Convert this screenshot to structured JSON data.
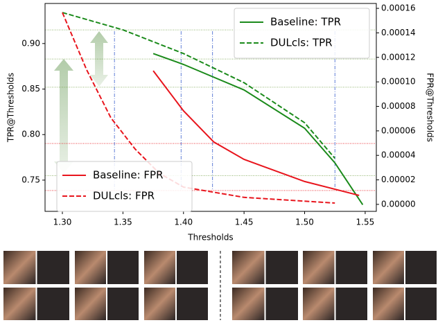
{
  "chart_data": {
    "type": "line",
    "xlabel": "Thresholds",
    "ylabel": "TPR@Thresholds",
    "y2label": "FPR@Thresholds",
    "xlim": [
      1.2857,
      1.5592
    ],
    "ylim": [
      0.7157,
      0.944
    ],
    "y2lim": [
      -5.7e-06,
      0.000164
    ],
    "xticks": [
      {
        "value": 1.3,
        "label": "1.30"
      },
      1.35,
      {
        "value": 1.4,
        "label": "1.40"
      },
      1.45,
      {
        "value": 1.5,
        "label": "1.50"
      },
      1.55
    ],
    "yticks": [
      0.75,
      {
        "value": 0.8,
        "label": "0.80"
      },
      0.85,
      {
        "value": 0.9,
        "label": "0.90"
      }
    ],
    "y2ticks": [
      {
        "value": 0,
        "label": "0.00000"
      },
      {
        "value": 2e-05,
        "label": "0.00002"
      },
      {
        "value": 4e-05,
        "label": "0.00004"
      },
      {
        "value": 6e-05,
        "label": "0.00006"
      },
      {
        "value": 8e-05,
        "label": "0.00008"
      },
      {
        "value": 0.0001,
        "label": "0.00010"
      },
      {
        "value": 0.00012,
        "label": "0.00012"
      },
      {
        "value": 0.00014,
        "label": "0.00014"
      },
      {
        "value": 0.00016,
        "label": "0.00016"
      }
    ],
    "series": [
      {
        "name": "Baseline: TPR",
        "color": "#1a8a1a",
        "dashed": false,
        "axis": "y",
        "legend": "upper right",
        "x": [
          1.375,
          1.4,
          1.45,
          1.5,
          1.525,
          1.548
        ],
        "values": [
          0.889,
          0.877,
          0.849,
          0.807,
          0.769,
          0.723
        ]
      },
      {
        "name": "DULcls: TPR",
        "color": "#1a8a1a",
        "dashed": true,
        "axis": "y",
        "legend": "upper right",
        "x": [
          1.3,
          1.35,
          1.4,
          1.45,
          1.5,
          1.525
        ],
        "values": [
          0.934,
          0.915,
          0.889,
          0.857,
          0.813,
          0.774
        ]
      },
      {
        "name": "Baseline: FPR",
        "color": "#e8141c",
        "dashed": false,
        "axis": "y2",
        "legend": "lower left",
        "x": [
          1.375,
          1.4,
          1.425,
          1.45,
          1.5,
          1.545
        ],
        "values": [
          0.0001091,
          7.63e-05,
          5.09e-05,
          3.67e-05,
          1.87e-05,
          7.3e-06
        ]
      },
      {
        "name": "DULcls: FPR",
        "color": "#e8141c",
        "dashed": true,
        "axis": "y2",
        "legend": "lower left",
        "x": [
          1.3,
          1.32,
          1.34,
          1.36,
          1.38,
          1.4,
          1.45,
          1.525
        ],
        "values": [
          0.0001566,
          0.00011,
          7.07e-05,
          4.52e-05,
          2.54e-05,
          1.41e-05,
          5.7e-06,
          1.1e-06
        ]
      }
    ],
    "ref_tpr": [
      0.915,
      0.883,
      0.852,
      0.755
    ],
    "ref_fpr": [
      4.97e-05,
      1.13e-05
    ],
    "ref_x": [
      1.343,
      1.398,
      1.424,
      1.525
    ]
  }
}
